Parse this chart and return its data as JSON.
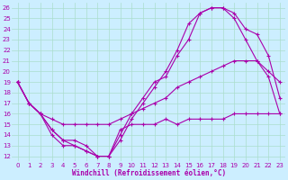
{
  "xlabel": "Windchill (Refroidissement éolien,°C)",
  "bg_color": "#cceeff",
  "grid_color": "#aaddcc",
  "line_color": "#aa00aa",
  "xlim": [
    -0.5,
    23.5
  ],
  "ylim": [
    11.5,
    26.5
  ],
  "xticks": [
    0,
    1,
    2,
    3,
    4,
    5,
    6,
    7,
    8,
    9,
    10,
    11,
    12,
    13,
    14,
    15,
    16,
    17,
    18,
    19,
    20,
    21,
    22,
    23
  ],
  "yticks": [
    12,
    13,
    14,
    15,
    16,
    17,
    18,
    19,
    20,
    21,
    22,
    23,
    24,
    25,
    26
  ],
  "line1_x": [
    0,
    1,
    2,
    3,
    4,
    5,
    6,
    7,
    8,
    9,
    10,
    11,
    12,
    13,
    14,
    15,
    16,
    17,
    18,
    19,
    20,
    21,
    22,
    23
  ],
  "line1_y": [
    19,
    17,
    16,
    14.5,
    13.5,
    13.5,
    13,
    12,
    12,
    14.5,
    15,
    15,
    15,
    15.5,
    15,
    15.5,
    15.5,
    15.5,
    15.5,
    16,
    16,
    16,
    16,
    16
  ],
  "line2_x": [
    0,
    1,
    2,
    3,
    4,
    5,
    6,
    7,
    8,
    9,
    10,
    11,
    12,
    13,
    14,
    15,
    16,
    17,
    18,
    19,
    20,
    21,
    22,
    23
  ],
  "line2_y": [
    19,
    17,
    16,
    15.5,
    15,
    15,
    15,
    15,
    15,
    15.5,
    16,
    16.5,
    17,
    17.5,
    18.5,
    19,
    19.5,
    20,
    20.5,
    21,
    21,
    21,
    20,
    19
  ],
  "line3_x": [
    0,
    1,
    2,
    3,
    4,
    5,
    6,
    7,
    8,
    9,
    10,
    11,
    12,
    13,
    14,
    15,
    16,
    17,
    18,
    19,
    20,
    21,
    22,
    23
  ],
  "line3_y": [
    19,
    17,
    16,
    14.5,
    13.5,
    13,
    12.5,
    12,
    12,
    13.5,
    15.5,
    17,
    18.5,
    20,
    22,
    24.5,
    25.5,
    26,
    26,
    25,
    23,
    21,
    19.5,
    16
  ],
  "line4_x": [
    0,
    1,
    2,
    3,
    4,
    5,
    6,
    7,
    8,
    9,
    10,
    11,
    12,
    13,
    14,
    15,
    16,
    17,
    18,
    19,
    20,
    21,
    22,
    23
  ],
  "line4_y": [
    19,
    17,
    16,
    14,
    13,
    13,
    12.5,
    12,
    12,
    14,
    16,
    17.5,
    19,
    19.5,
    21.5,
    23,
    25.5,
    26,
    26,
    25.5,
    24,
    23.5,
    21.5,
    17.5
  ]
}
